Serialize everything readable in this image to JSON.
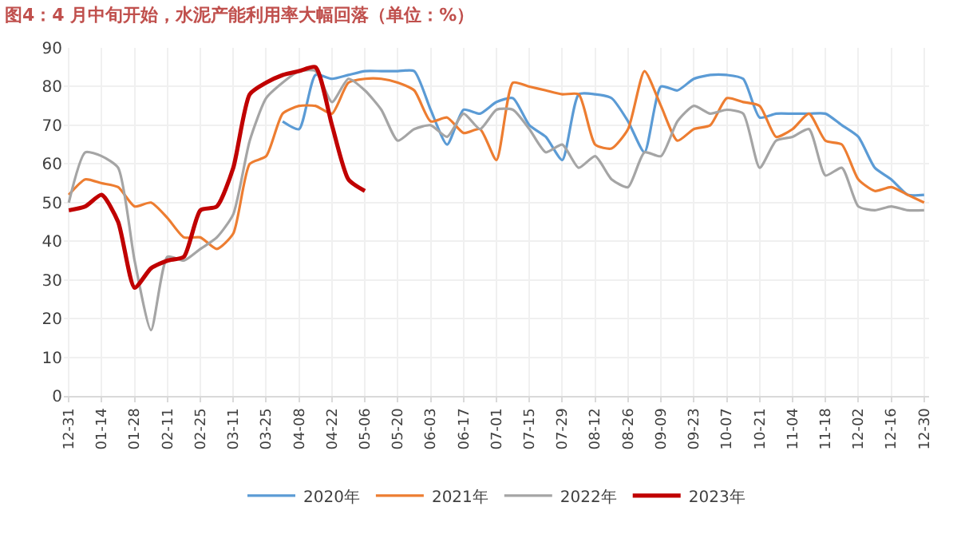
{
  "chart_data": {
    "type": "line",
    "title": "图4：4 月中旬开始，水泥产能利用率大幅回落（单位：%）",
    "categories": [
      "12-31",
      null,
      "01-14",
      null,
      "01-28",
      null,
      "02-11",
      null,
      "02-25",
      null,
      "03-11",
      null,
      "03-25",
      null,
      "04-08",
      null,
      "04-22",
      null,
      "05-06",
      null,
      "05-20",
      null,
      "06-03",
      null,
      "06-17",
      null,
      "07-01",
      null,
      "07-15",
      null,
      "07-29",
      null,
      "08-12",
      null,
      "08-26",
      null,
      "09-09",
      null,
      "09-23",
      null,
      "10-07",
      null,
      "10-21",
      null,
      "11-04",
      null,
      "11-18",
      null,
      "12-02",
      null,
      "12-16",
      null,
      "12-30"
    ],
    "series": [
      {
        "name": "2020年",
        "color": "#5b9bd5",
        "values": [
          null,
          null,
          null,
          null,
          null,
          null,
          null,
          null,
          null,
          null,
          null,
          null,
          null,
          71,
          69,
          83,
          82,
          83,
          84,
          84,
          84,
          84,
          74,
          65,
          74,
          73,
          76,
          77,
          70,
          67,
          61,
          78,
          78,
          77,
          71,
          63,
          80,
          79,
          82,
          83,
          83,
          82,
          72,
          73,
          73,
          73,
          73,
          70,
          67,
          59,
          56,
          52,
          52
        ]
      },
      {
        "name": "2021年",
        "color": "#ed7d31",
        "values": [
          52,
          56,
          55,
          54,
          49,
          50,
          46,
          41,
          41,
          38,
          42,
          60,
          62,
          73,
          75,
          75,
          73,
          81,
          82,
          82,
          81,
          79,
          71,
          72,
          68,
          69,
          61,
          81,
          80,
          79,
          78,
          78,
          65,
          64,
          69,
          84,
          75,
          66,
          69,
          70,
          77,
          76,
          75,
          67,
          69,
          73,
          66,
          65,
          56,
          53,
          54,
          52,
          50
        ]
      },
      {
        "name": "2022年",
        "color": "#a5a5a5",
        "values": [
          50,
          63,
          62,
          59,
          35,
          17,
          36,
          35,
          38,
          41,
          47,
          66,
          77,
          81,
          84,
          84,
          76,
          82,
          79,
          74,
          66,
          69,
          70,
          67,
          73,
          69,
          74,
          74,
          69,
          63,
          65,
          59,
          62,
          56,
          54,
          63,
          62,
          71,
          75,
          73,
          74,
          73,
          59,
          66,
          67,
          69,
          57,
          59,
          49,
          48,
          49,
          48,
          48
        ]
      },
      {
        "name": "2023年",
        "color": "#c00000",
        "values": [
          48,
          49,
          52,
          45,
          28,
          33,
          35,
          36,
          48,
          49,
          59,
          78,
          81,
          83,
          84,
          85,
          70,
          56,
          53,
          null,
          null,
          null,
          null,
          null,
          null,
          null,
          null,
          null,
          null,
          null,
          null,
          null,
          null,
          null,
          null,
          null,
          null,
          null,
          null,
          null,
          null,
          null,
          null,
          null,
          null,
          null,
          null,
          null,
          null,
          null,
          null,
          null,
          null
        ]
      }
    ],
    "ylim": [
      0,
      90
    ],
    "yticks": [
      0,
      10,
      20,
      30,
      40,
      50,
      60,
      70,
      80,
      90
    ],
    "grid": true,
    "legend": "bottom",
    "marker": "none",
    "line_style": "solid"
  }
}
